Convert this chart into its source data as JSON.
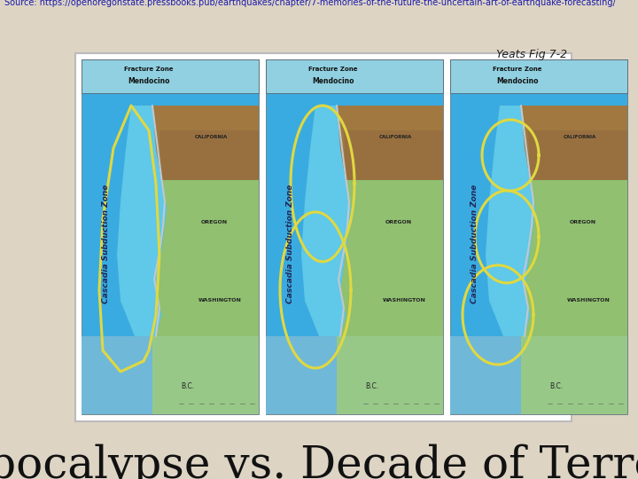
{
  "title": "Apocalypse vs. Decade of Terror",
  "title_fontsize": 36,
  "background_color": "#ddd4c4",
  "yeats_label": "Yeats Fig 7-2",
  "yeats_fontsize": 9,
  "source_text": "Source: https://openoregonstate.pressbooks.pub/earthquakes/chapter/7-memories-of-the-future-the-uncertain-art-of-earthquake-forecasting/",
  "source_fontsize": 7,
  "source_color": "#1a1aaa",
  "map_colors": {
    "ocean_deep": "#3aabe0",
    "ocean_light": "#60c8e8",
    "land_green_dark": "#6aa050",
    "land_green_light": "#90c070",
    "land_brown": "#a07840",
    "land_tan": "#c8a870",
    "bc_water": "#70b8d8",
    "bc_land": "#98c888",
    "subzone_line": "#e0d840",
    "coast_gray": "#c0c8d0",
    "label_dark": "#202858",
    "fracture_zone_bg": "#60b8cc",
    "mendocino_bg": "#90d0e0",
    "border_color": "#888888"
  }
}
